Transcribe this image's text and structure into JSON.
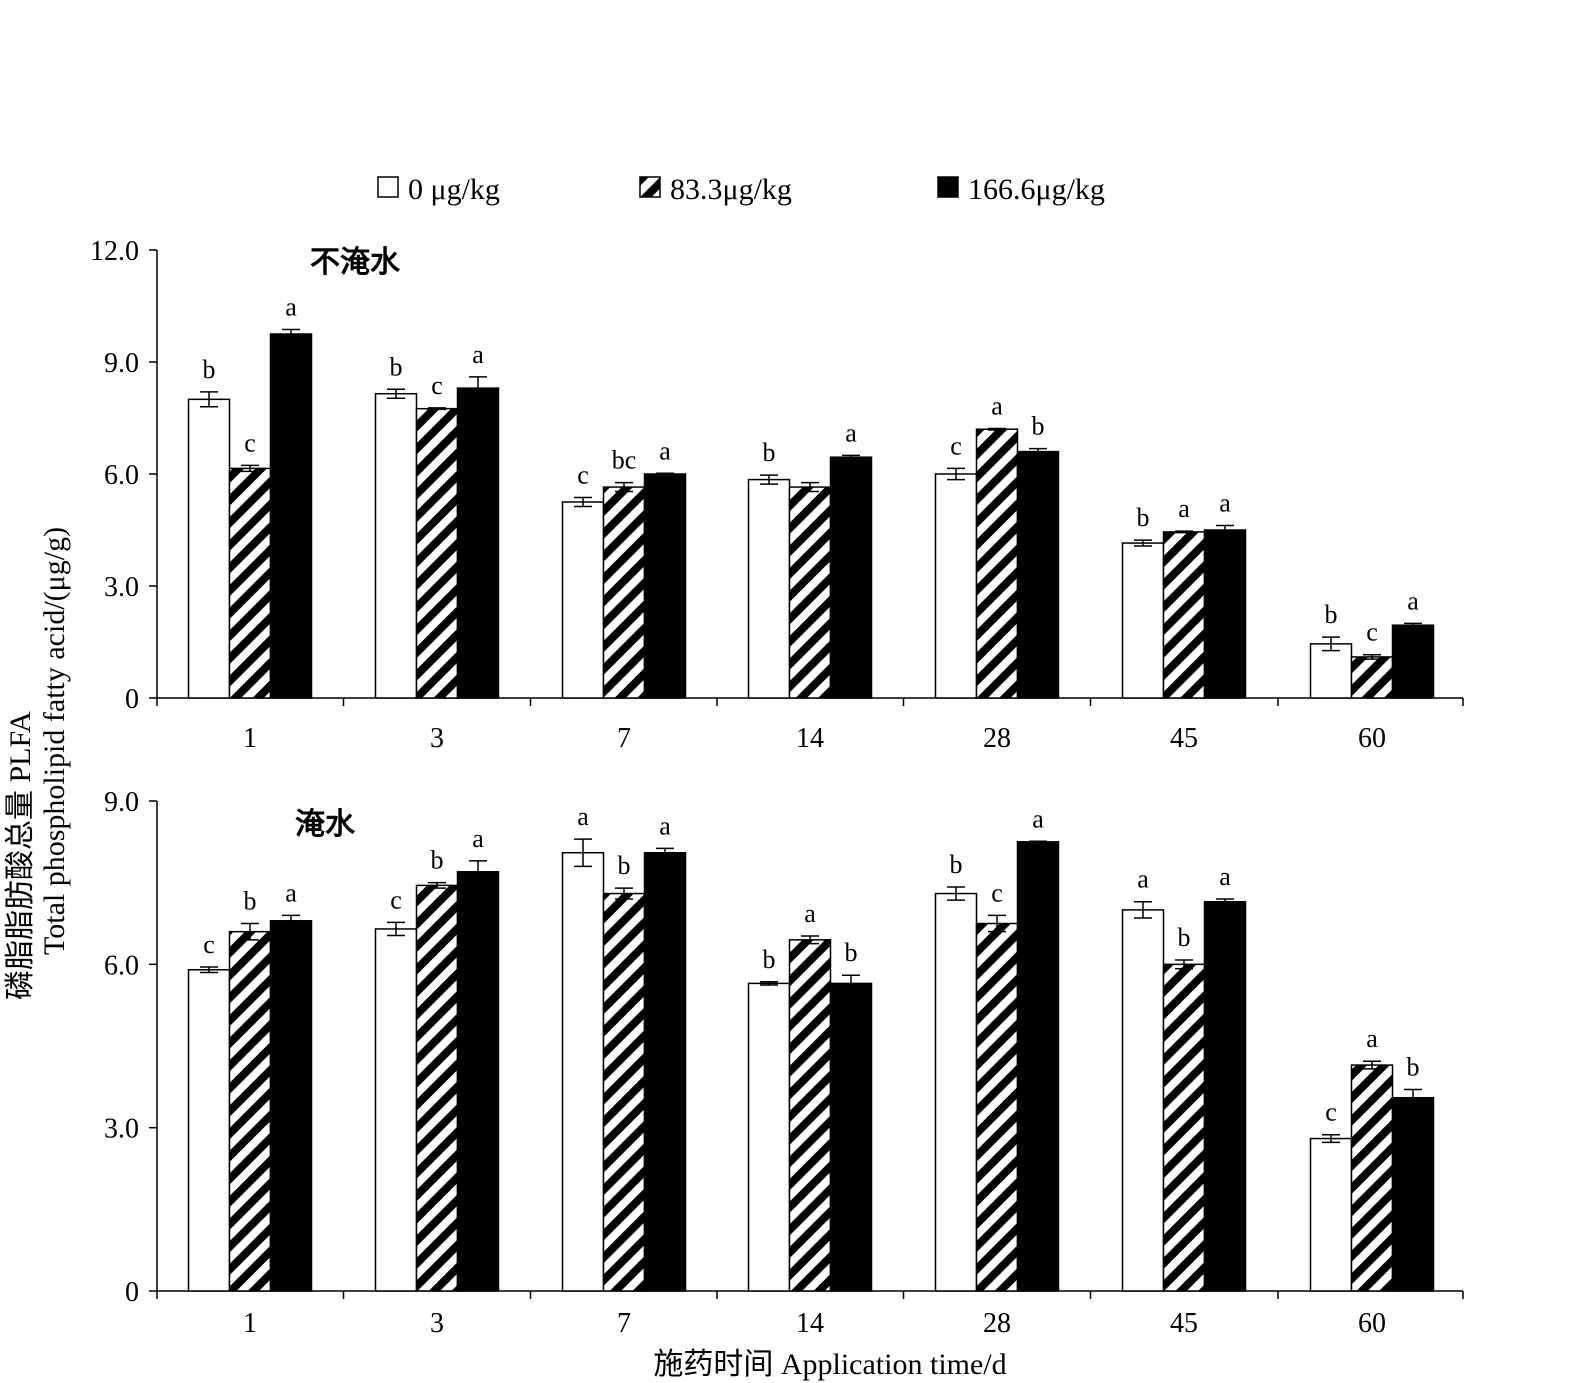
{
  "legend": [
    {
      "label": "0 μg/kg",
      "pattern": "none"
    },
    {
      "label": "83.3μg/kg",
      "pattern": "hatch"
    },
    {
      "label": "166.6μg/kg",
      "pattern": "solid"
    }
  ],
  "ylabel_cn": "磷脂脂肪酸总量 PLFA",
  "ylabel_en": "Total phospholipid fatty acid/(μg/g)",
  "xlabel": "施药时间 Application time/d",
  "chart_data": [
    {
      "type": "bar",
      "title": "不淹水",
      "categories": [
        "1",
        "3",
        "7",
        "14",
        "28",
        "45",
        "60"
      ],
      "ylim": [
        0,
        12
      ],
      "yticks": [
        "0",
        "3.0",
        "6.0",
        "9.0",
        "12.0"
      ],
      "ytick_values": [
        0,
        3,
        6,
        9,
        12
      ],
      "series": [
        {
          "name": "0 μg/kg",
          "values": [
            8.0,
            8.15,
            5.25,
            5.85,
            6.0,
            4.15,
            1.45
          ],
          "errors": [
            0.2,
            0.12,
            0.12,
            0.12,
            0.15,
            0.08,
            0.18
          ],
          "sig": [
            "b",
            "b",
            "c",
            "b",
            "c",
            "b",
            "b"
          ]
        },
        {
          "name": "83.3μg/kg",
          "values": [
            6.15,
            7.75,
            5.65,
            5.65,
            7.2,
            4.45,
            1.1
          ],
          "errors": [
            0.08,
            0.02,
            0.12,
            0.12,
            0.02,
            0.02,
            0.06
          ],
          "sig": [
            "c",
            "c",
            "bc",
            "",
            "a",
            "a",
            "c"
          ]
        },
        {
          "name": "166.6μg/kg",
          "values": [
            9.75,
            8.3,
            6.0,
            6.45,
            6.6,
            4.5,
            1.95
          ],
          "errors": [
            0.12,
            0.3,
            0.02,
            0.05,
            0.08,
            0.12,
            0.05
          ],
          "sig": [
            "a",
            "a",
            "a",
            "a",
            "b",
            "a",
            "a"
          ]
        }
      ]
    },
    {
      "type": "bar",
      "title": "淹水",
      "categories": [
        "1",
        "3",
        "7",
        "14",
        "28",
        "45",
        "60"
      ],
      "ylim": [
        0,
        9
      ],
      "yticks": [
        "0",
        "3.0",
        "6.0",
        "9.0"
      ],
      "ytick_values": [
        0,
        3,
        6,
        9
      ],
      "series": [
        {
          "name": "0 μg/kg",
          "values": [
            5.9,
            6.65,
            8.05,
            5.65,
            7.3,
            7.0,
            2.8
          ],
          "errors": [
            0.05,
            0.12,
            0.25,
            0.03,
            0.12,
            0.15,
            0.07
          ],
          "sig": [
            "c",
            "c",
            "a",
            "b",
            "b",
            "a",
            "c"
          ]
        },
        {
          "name": "83.3μg/kg",
          "values": [
            6.6,
            7.45,
            7.3,
            6.45,
            6.75,
            6.0,
            4.15
          ],
          "errors": [
            0.15,
            0.05,
            0.1,
            0.07,
            0.15,
            0.08,
            0.07
          ],
          "sig": [
            "b",
            "b",
            "b",
            "a",
            "c",
            "b",
            "a"
          ]
        },
        {
          "name": "166.6μg/kg",
          "values": [
            6.8,
            7.7,
            8.05,
            5.65,
            8.25,
            7.15,
            3.55
          ],
          "errors": [
            0.1,
            0.2,
            0.08,
            0.15,
            0.01,
            0.05,
            0.15
          ],
          "sig": [
            "a",
            "a",
            "a",
            "b",
            "a",
            "a",
            "b"
          ]
        }
      ]
    }
  ]
}
